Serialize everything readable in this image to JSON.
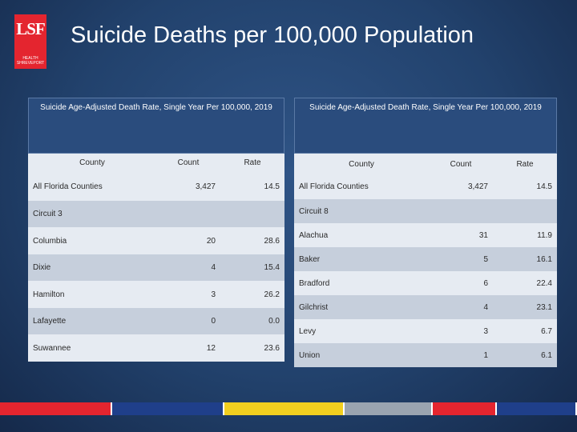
{
  "logo": {
    "mark": "LSF",
    "line1": "HEALTH",
    "line2": "SHREVEPORT"
  },
  "title": "Suicide Deaths per 100,000 Population",
  "left_table": {
    "caption": "Suicide Age-Adjusted Death Rate, Single Year Per 100,000, 2019",
    "headers": {
      "county": "County",
      "count": "Count",
      "rate": "Rate"
    },
    "all_counties": {
      "name": "All Florida Counties",
      "count": "3,427",
      "rate": "14.5"
    },
    "circuit": "Circuit 3",
    "rows": [
      {
        "name": "Columbia",
        "count": "20",
        "rate": "28.6"
      },
      {
        "name": "Dixie",
        "count": "4",
        "rate": "15.4"
      },
      {
        "name": "Hamilton",
        "count": "3",
        "rate": "26.2"
      },
      {
        "name": "Lafayette",
        "count": "0",
        "rate": "0.0"
      },
      {
        "name": "Suwannee",
        "count": "12",
        "rate": "23.6"
      }
    ]
  },
  "right_table": {
    "caption": "Suicide Age-Adjusted Death Rate, Single Year Per 100,000, 2019",
    "headers": {
      "county": "County",
      "count": "Count",
      "rate": "Rate"
    },
    "all_counties": {
      "name": "All Florida Counties",
      "count": "3,427",
      "rate": "14.5"
    },
    "circuit": "Circuit 8",
    "rows": [
      {
        "name": "Alachua",
        "count": "31",
        "rate": "11.9"
      },
      {
        "name": "Baker",
        "count": "5",
        "rate": "16.1"
      },
      {
        "name": "Bradford",
        "count": "6",
        "rate": "22.4"
      },
      {
        "name": "Gilchrist",
        "count": "4",
        "rate": "23.1"
      },
      {
        "name": "Levy",
        "count": "3",
        "rate": "6.7"
      },
      {
        "name": "Union",
        "count": "1",
        "rate": "6.1"
      }
    ]
  },
  "colors": {
    "brand_red": "#e4252f",
    "bar": [
      "#e4252f",
      "#1f3f8a",
      "#f2cf1f",
      "#9aa4b0",
      "#e4252f",
      "#1f3f8a"
    ]
  }
}
